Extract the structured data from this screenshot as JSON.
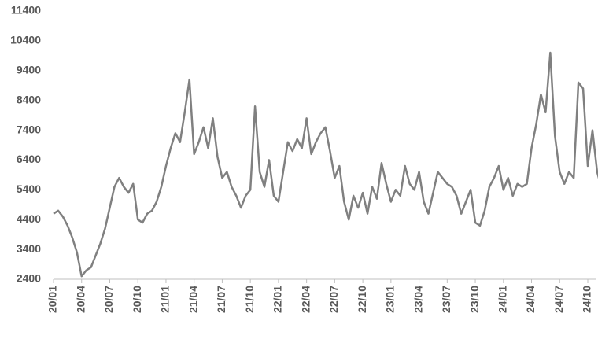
{
  "chart_data": {
    "type": "line",
    "categories": [
      "20/01",
      null,
      null,
      null,
      null,
      null,
      "20/04",
      null,
      null,
      null,
      null,
      null,
      "20/07",
      null,
      null,
      null,
      null,
      null,
      "20/10",
      null,
      null,
      null,
      null,
      null,
      "21/01",
      null,
      null,
      null,
      null,
      null,
      "21/04",
      null,
      null,
      null,
      null,
      null,
      "21/07",
      null,
      null,
      null,
      null,
      null,
      "21/10",
      null,
      null,
      null,
      null,
      null,
      "22/01",
      null,
      null,
      null,
      null,
      null,
      "22/04",
      null,
      null,
      null,
      null,
      null,
      "22/07",
      null,
      null,
      null,
      null,
      null,
      "22/10",
      null,
      null,
      null,
      null,
      null,
      "23/01",
      null,
      null,
      null,
      null,
      null,
      "23/04",
      null,
      null,
      null,
      null,
      null,
      "23/07",
      null,
      null,
      null,
      null,
      null,
      "23/10",
      null,
      null,
      null,
      null,
      null,
      "24/01",
      null,
      null,
      null,
      null,
      null,
      "24/04",
      null,
      null,
      null,
      null,
      null,
      "24/07",
      null,
      null,
      null,
      null,
      null,
      "24/10",
      null,
      null,
      null
    ],
    "values": [
      4600,
      4700,
      4500,
      4200,
      3800,
      3300,
      2500,
      2700,
      2800,
      3200,
      3600,
      4100,
      4800,
      5500,
      5800,
      5500,
      5300,
      5600,
      4400,
      4300,
      4600,
      4700,
      5000,
      5500,
      6200,
      6800,
      7300,
      7000,
      8000,
      9100,
      6600,
      7000,
      7500,
      6800,
      7800,
      6500,
      5800,
      6000,
      5500,
      5200,
      4800,
      5200,
      5400,
      8200,
      6000,
      5500,
      6400,
      5200,
      5000,
      6000,
      7000,
      6700,
      7100,
      6800,
      7800,
      6600,
      7000,
      7300,
      7500,
      6700,
      5800,
      6200,
      5000,
      4400,
      5200,
      4800,
      5300,
      4600,
      5500,
      5100,
      6300,
      5600,
      5000,
      5400,
      5200,
      6200,
      5600,
      5400,
      6000,
      5000,
      4600,
      5300,
      6000,
      5800,
      5600,
      5500,
      5200,
      4600,
      5000,
      5400,
      4300,
      4200,
      4700,
      5500,
      5800,
      6200,
      5400,
      5800,
      5200,
      5600,
      5500,
      5600,
      6800,
      7600,
      8600,
      8000,
      10000,
      7200,
      6000,
      5600,
      6000,
      5800,
      9000,
      8800,
      6200,
      7400,
      6000,
      5400
    ],
    "color": "#808080",
    "ylim": [
      2400,
      11400
    ],
    "yticks": [
      2400,
      3400,
      4400,
      5400,
      6400,
      7400,
      8400,
      9400,
      10400,
      11400
    ],
    "grid": false
  }
}
